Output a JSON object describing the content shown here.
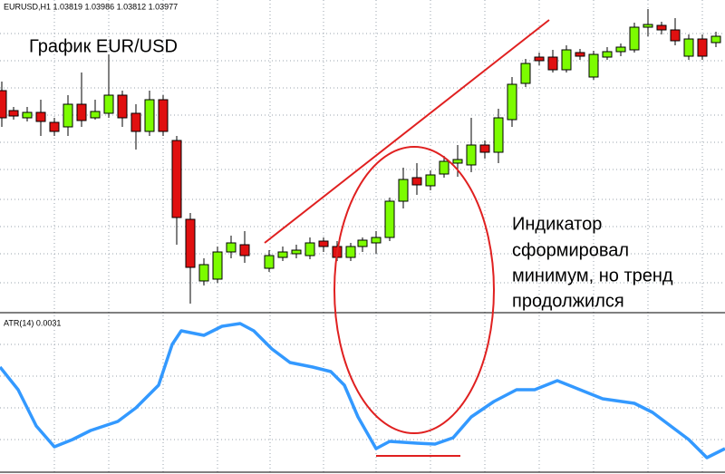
{
  "header": {
    "symbol_line": "EURUSD,H1  1.03819 1.03986 1.03812 1.03977"
  },
  "title": "График EUR/USD",
  "annotation": {
    "lines": [
      "Индикатор",
      "сформировал",
      "минимум, но тренд",
      "продолжился"
    ]
  },
  "indicator": {
    "label": "ATR(14) 0.0031"
  }
}
